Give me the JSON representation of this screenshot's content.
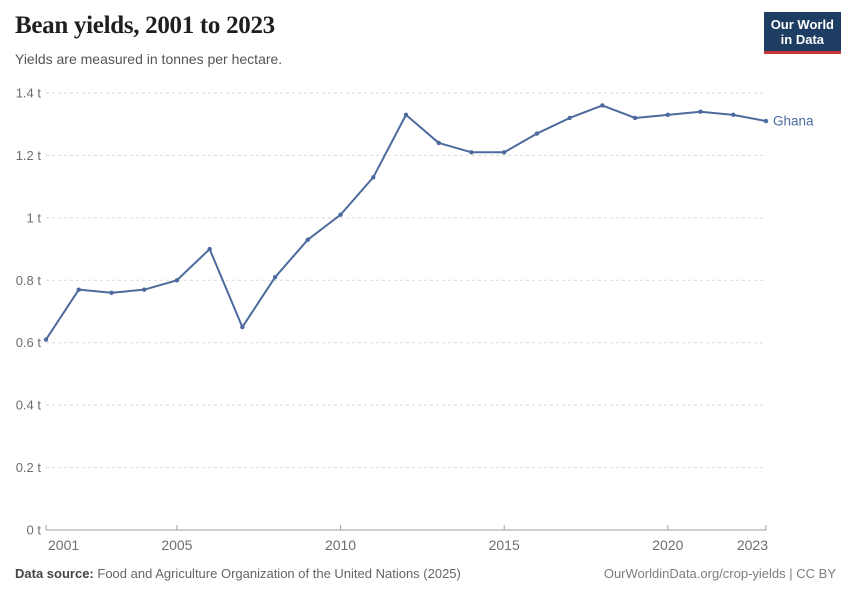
{
  "header": {
    "title": "Bean yields, 2001 to 2023",
    "subtitle": "Yields are measured in tonnes per hectare."
  },
  "logo": {
    "line1": "Our World",
    "line2": "in Data",
    "bg_color": "#1d3d63",
    "bar_color": "#c5353a"
  },
  "chart_data": {
    "type": "line",
    "title": "Bean yields, 2001 to 2023",
    "ylabel": "tonnes per hectare",
    "xlabel": "",
    "x": [
      2001,
      2002,
      2003,
      2004,
      2005,
      2006,
      2007,
      2008,
      2009,
      2010,
      2011,
      2012,
      2013,
      2014,
      2015,
      2016,
      2017,
      2018,
      2019,
      2020,
      2021,
      2022,
      2023
    ],
    "series": [
      {
        "name": "Ghana",
        "color": "#4C6A9C",
        "values": [
          0.61,
          0.77,
          0.76,
          0.77,
          0.8,
          0.9,
          0.65,
          0.81,
          0.93,
          1.01,
          1.13,
          1.33,
          1.24,
          1.21,
          1.21,
          1.27,
          1.32,
          1.36,
          1.32,
          1.33,
          1.34,
          1.33,
          1.31
        ]
      }
    ],
    "xlim": [
      2001,
      2023
    ],
    "ylim": [
      0,
      1.4
    ],
    "grid": "horizontal-dashed",
    "legend_position": "end-of-line-label",
    "yticks": [
      {
        "v": 0,
        "label": "0 t"
      },
      {
        "v": 0.2,
        "label": "0.2 t"
      },
      {
        "v": 0.4,
        "label": "0.4 t"
      },
      {
        "v": 0.6,
        "label": "0.6 t"
      },
      {
        "v": 0.8,
        "label": "0.8 t"
      },
      {
        "v": 1,
        "label": "1 t"
      },
      {
        "v": 1.2,
        "label": "1.2 t"
      },
      {
        "v": 1.4,
        "label": "1.4 t"
      }
    ],
    "xticks": [
      {
        "v": 2001,
        "label": "2001"
      },
      {
        "v": 2005,
        "label": "2005"
      },
      {
        "v": 2010,
        "label": "2010"
      },
      {
        "v": 2015,
        "label": "2015"
      },
      {
        "v": 2020,
        "label": "2020"
      },
      {
        "v": 2023,
        "label": "2023"
      }
    ],
    "grid_color": "#d9d9d9",
    "axis_color": "#9e9e9e",
    "tick_label_color": "#6e6e6e"
  },
  "footer": {
    "source_label": "Data source:",
    "source_text": "Food and Agriculture Organization of the United Nations (2025)",
    "credit": "OurWorldinData.org/crop-yields | CC BY"
  }
}
